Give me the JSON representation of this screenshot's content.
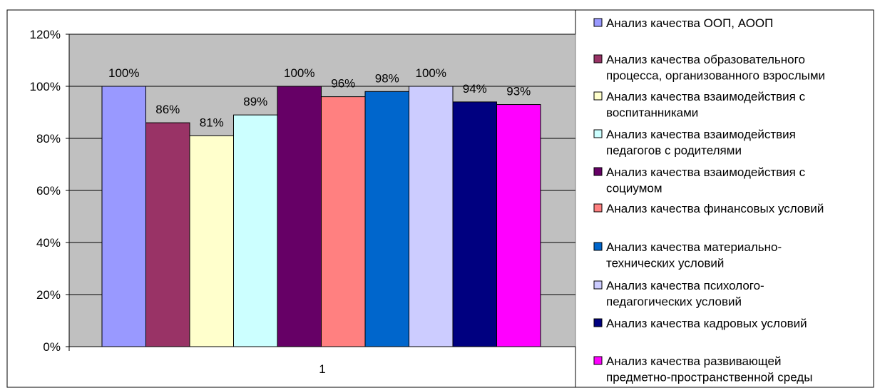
{
  "chart_data": {
    "type": "bar",
    "categories": [
      "1"
    ],
    "ylim": [
      0,
      120
    ],
    "y_ticks": [
      "0%",
      "20%",
      "40%",
      "60%",
      "80%",
      "100%",
      "120%"
    ],
    "y_tick_values": [
      0,
      20,
      40,
      60,
      80,
      100,
      120
    ],
    "grid": true,
    "legend_position": "right",
    "plot_background": "#c0c0c0",
    "series": [
      {
        "name": "Анализ качества ООП, АООП",
        "values": [
          100
        ],
        "label": "100%",
        "color": "#9999ff",
        "legend_lines": [
          "Анализ качества ООП, АООП"
        ]
      },
      {
        "name": "Анализ качества образовательного процесса, организованного взрослыми",
        "values": [
          86
        ],
        "label": "86%",
        "color": "#993366",
        "legend_lines": [
          "Анализ качества образовательного",
          "процесса, организованного взрослыми"
        ]
      },
      {
        "name": "Анализ качества взаимодействия с воспитанниками",
        "values": [
          81
        ],
        "label": "81%",
        "color": "#ffffcc",
        "legend_lines": [
          "Анализ качества взаимодействия с",
          "воспитанниками"
        ]
      },
      {
        "name": "Анализ качества взаимодействия педагогов с родителями",
        "values": [
          89
        ],
        "label": "89%",
        "color": "#ccffff",
        "legend_lines": [
          "Анализ качества взаимодействия",
          "педагогов с родителями"
        ]
      },
      {
        "name": "Анализ качества взаимодействия с социумом",
        "values": [
          100
        ],
        "label": "100%",
        "color": "#660066",
        "legend_lines": [
          "Анализ качества взаимодействия с",
          "социумом"
        ]
      },
      {
        "name": "Анализ качества финансовых условий",
        "values": [
          96
        ],
        "label": "96%",
        "color": "#ff8080",
        "legend_lines": [
          "Анализ качества финансовых условий"
        ]
      },
      {
        "name": "Анализ качества материально-технических условий",
        "values": [
          98
        ],
        "label": "98%",
        "color": "#0066cc",
        "legend_lines": [
          "Анализ качества материально-",
          "технических условий"
        ]
      },
      {
        "name": "Анализ качества психолого-педагогических условий",
        "values": [
          100
        ],
        "label": "100%",
        "color": "#ccccff",
        "legend_lines": [
          "Анализ качества психолого-",
          "педагогических условий"
        ]
      },
      {
        "name": "Анализ качества кадровых условий",
        "values": [
          94
        ],
        "label": "94%",
        "color": "#000080",
        "legend_lines": [
          "Анализ качества кадровых условий"
        ]
      },
      {
        "name": "Анализ качества развивающей предметно-пространственной среды",
        "values": [
          93
        ],
        "label": "93%",
        "color": "#ff00ff",
        "legend_lines": [
          "Анализ качества развивающей",
          "предметно-пространственной среды"
        ]
      }
    ]
  }
}
